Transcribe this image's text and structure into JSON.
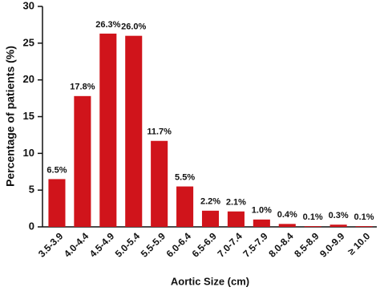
{
  "chart_data": {
    "type": "bar",
    "x_label": "Aortic Size (cm)",
    "y_label": "Percentage of patients (%)",
    "categories": [
      "3.5-3.9",
      "4.0-4.4",
      "4.5-4.9",
      "5.0-5.4",
      "5.5-5.9",
      "6.0-6.4",
      "6.5-6.9",
      "7.0-7.4",
      "7.5-7.9",
      "8.0-8.4",
      "8.5-8.9",
      "9.0-9.9",
      "≥ 10.0"
    ],
    "values": [
      6.5,
      17.8,
      26.3,
      26.0,
      11.7,
      5.5,
      2.2,
      2.1,
      1.0,
      0.4,
      0.1,
      0.3,
      0.1
    ],
    "value_labels": [
      "6.5%",
      "17.8%",
      "26.3%",
      "26.0%",
      "11.7%",
      "5.5%",
      "2.2%",
      "2.1%",
      "1.0%",
      "0.4%",
      "0.1%",
      "0.3%",
      "0.1%"
    ],
    "color": "#d0141b",
    "ylim": [
      0,
      30
    ],
    "yticks": [
      0,
      5,
      10,
      15,
      20,
      25,
      30
    ],
    "grid": false
  }
}
